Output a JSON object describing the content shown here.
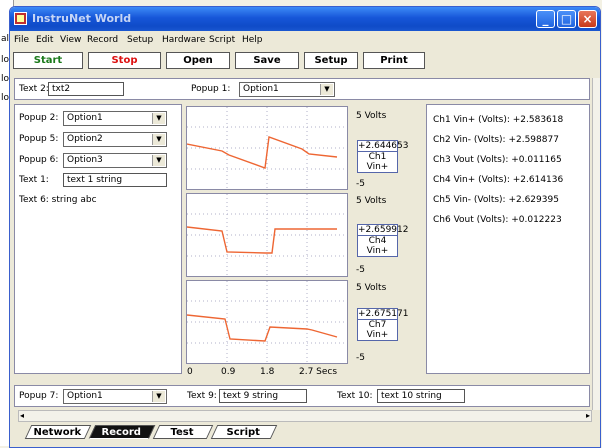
{
  "window": {
    "title": "InstruNet World"
  },
  "titlebar_buttons": {
    "minimize": "_",
    "maximize": "□",
    "close": "×"
  },
  "background_window": {
    "fragments": [
      "al",
      "lo",
      "lo",
      "lo"
    ]
  },
  "menu": [
    "File",
    "Edit",
    "View",
    "Record",
    "Setup",
    "Hardware",
    "Script",
    "Help"
  ],
  "toolbar": {
    "start": "Start",
    "stop": "Stop",
    "open": "Open",
    "save": "Save",
    "setup": "Setup",
    "print": "Print"
  },
  "top_row": {
    "text2_label": "Text 2:",
    "text2_value": "txt2",
    "popup1_label": "Popup 1:",
    "popup1_value": "Option1"
  },
  "left_panel": {
    "popup2_label": "Popup 2:",
    "popup2_value": "Option1",
    "popup5_label": "Popup 5:",
    "popup5_value": "Option2",
    "popup6_label": "Popup 6:",
    "popup6_value": "Option3",
    "text1_label": "Text 1:",
    "text1_value": "text 1 string",
    "text6": "Text 6: string abc"
  },
  "plots": [
    {
      "top_label": "5 Volts",
      "bottom_label": "-5",
      "value": "+2.644653",
      "channel": "Ch1 Vin+"
    },
    {
      "top_label": "5 Volts",
      "bottom_label": "-5",
      "value": "+2.659912",
      "channel": "Ch4 Vin+"
    },
    {
      "top_label": "5 Volts",
      "bottom_label": "-5",
      "value": "+2.675171",
      "channel": "Ch7 Vin+"
    }
  ],
  "x_axis": {
    "ticks": [
      "0",
      "0.9",
      "1.8",
      "2.7 Secs"
    ]
  },
  "stats": [
    "Ch1 Vin+ (Volts): +2.583618",
    "Ch2 Vin- (Volts): +2.598877",
    "Ch3 Vout (Volts): +0.011165",
    "Ch4 Vin+ (Volts): +2.614136",
    "Ch5 Vin- (Volts): +2.629395",
    "Ch6 Vout (Volts): +0.012223"
  ],
  "bottom_row": {
    "popup7_label": "Popup 7:",
    "popup7_value": "Option1",
    "text9_label": "Text 9:",
    "text9_value": "text 9 string",
    "text10_label": "Text 10:",
    "text10_value": "text 10 string"
  },
  "tabs": [
    "Network",
    "Record",
    "Test",
    "Script"
  ],
  "colors": {
    "trace": "#ee6633",
    "grid": "#b0b0c8",
    "titlebar": "#1656d8"
  }
}
